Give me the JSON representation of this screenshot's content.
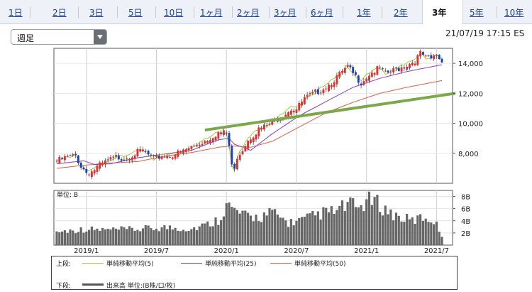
{
  "tabs": [
    {
      "label": "1日"
    },
    {
      "label": "2日"
    },
    {
      "label": "3日"
    },
    {
      "label": "5日"
    },
    {
      "label": "10日"
    },
    {
      "label": "1ヶ月"
    },
    {
      "label": "2ヶ月"
    },
    {
      "label": "3ヶ月"
    },
    {
      "label": "6ヶ月"
    },
    {
      "label": "1年"
    },
    {
      "label": "2年"
    },
    {
      "label": "3年"
    },
    {
      "label": "5年"
    },
    {
      "label": "10年"
    }
  ],
  "active_tab": "3年",
  "period_select": {
    "value": "週足"
  },
  "timestamp": "21/07/19 17:15 ES",
  "legend": {
    "upper_label": "上段:",
    "ma5": "単純移動平均(5)",
    "ma25": "単純移動平均(25)",
    "ma50": "単純移動平均(50)",
    "lower_label": "下段:",
    "volume": "出来高 単位:(B株/口/枚)"
  },
  "colors": {
    "up": "#e03030",
    "down": "#1a3fbf",
    "ma5": "#a8c83a",
    "ma25": "#8a3fc8",
    "ma50": "#e06040",
    "trendline": "#7aa84a",
    "volume": "#666666"
  },
  "chart_data": [
    {
      "type": "candlestick",
      "panel": "price",
      "interval": "weekly",
      "x_tick_labels": [
        "2019/1",
        "2019/7",
        "2020/1",
        "2020/7",
        "2021/1",
        "2021/7"
      ],
      "x_tick_weeks": [
        11,
        37,
        63,
        89,
        115,
        141
      ],
      "y_ticks": [
        8000,
        10000,
        12000,
        14000
      ],
      "y_tick_labels": [
        "8,000",
        "10,000",
        "12,000",
        "14,000"
      ],
      "ylim": [
        6000,
        15000
      ],
      "week_count": 144,
      "close_anchors": [
        [
          0,
          7600
        ],
        [
          4,
          7850
        ],
        [
          7,
          7950
        ],
        [
          9,
          7250
        ],
        [
          11,
          6850
        ],
        [
          13,
          6900
        ],
        [
          16,
          7300
        ],
        [
          19,
          7600
        ],
        [
          22,
          7850
        ],
        [
          25,
          7800
        ],
        [
          29,
          8100
        ],
        [
          32,
          8300
        ],
        [
          36,
          7700
        ],
        [
          39,
          7950
        ],
        [
          43,
          8000
        ],
        [
          47,
          8250
        ],
        [
          51,
          8600
        ],
        [
          56,
          9050
        ],
        [
          60,
          9500
        ],
        [
          63,
          9450
        ],
        [
          64,
          8600
        ],
        [
          65,
          7350
        ],
        [
          66,
          6950
        ],
        [
          67,
          7900
        ],
        [
          69,
          8400
        ],
        [
          71,
          9050
        ],
        [
          75,
          9700
        ],
        [
          79,
          10050
        ],
        [
          83,
          10550
        ],
        [
          87,
          11100
        ],
        [
          89,
          11050
        ],
        [
          92,
          11750
        ],
        [
          97,
          12250
        ],
        [
          101,
          12700
        ],
        [
          105,
          13350
        ],
        [
          108,
          13850
        ],
        [
          111,
          13200
        ],
        [
          113,
          12850
        ],
        [
          116,
          13400
        ],
        [
          120,
          13800
        ],
        [
          122,
          13400
        ],
        [
          126,
          13700
        ],
        [
          130,
          14000
        ],
        [
          133,
          14300
        ],
        [
          135,
          14750
        ],
        [
          136,
          14650
        ],
        [
          137,
          14450
        ],
        [
          139,
          14400
        ],
        [
          141,
          14700
        ],
        [
          143,
          14200
        ]
      ],
      "ma25_anchors": [
        [
          0,
          7300
        ],
        [
          10,
          7500
        ],
        [
          14,
          7250
        ],
        [
          20,
          7300
        ],
        [
          30,
          7700
        ],
        [
          40,
          7950
        ],
        [
          50,
          8200
        ],
        [
          60,
          8900
        ],
        [
          64,
          9000
        ],
        [
          66,
          8600
        ],
        [
          72,
          8200
        ],
        [
          80,
          9300
        ],
        [
          90,
          10500
        ],
        [
          100,
          11450
        ],
        [
          110,
          12400
        ],
        [
          120,
          13000
        ],
        [
          130,
          13450
        ],
        [
          140,
          13800
        ],
        [
          143,
          13900
        ]
      ],
      "ma50_anchors": [
        [
          0,
          7000
        ],
        [
          10,
          7200
        ],
        [
          20,
          7350
        ],
        [
          30,
          7450
        ],
        [
          40,
          7800
        ],
        [
          50,
          8050
        ],
        [
          60,
          8400
        ],
        [
          65,
          8500
        ],
        [
          72,
          8400
        ],
        [
          80,
          8800
        ],
        [
          90,
          9750
        ],
        [
          100,
          10700
        ],
        [
          110,
          11400
        ],
        [
          120,
          12000
        ],
        [
          130,
          12400
        ],
        [
          143,
          12850
        ]
      ],
      "trendline": {
        "x0": 55,
        "y0": 9550,
        "x1": 148,
        "y1": 12000
      }
    },
    {
      "type": "bar",
      "panel": "volume",
      "ylabel": "単位: B",
      "y_ticks": [
        2,
        4,
        6,
        8
      ],
      "y_tick_labels": [
        "2B",
        "4B",
        "6B",
        "8B"
      ],
      "ylim": [
        0,
        9
      ],
      "volume_anchors": [
        [
          0,
          2.2
        ],
        [
          10,
          2.6
        ],
        [
          20,
          2.5
        ],
        [
          30,
          2.6
        ],
        [
          40,
          2.9
        ],
        [
          50,
          2.7
        ],
        [
          56,
          3.4
        ],
        [
          60,
          4.2
        ],
        [
          63,
          6.6
        ],
        [
          66,
          5.7
        ],
        [
          70,
          4.7
        ],
        [
          75,
          4.6
        ],
        [
          80,
          5.3
        ],
        [
          86,
          3.7
        ],
        [
          92,
          4.2
        ],
        [
          98,
          5.2
        ],
        [
          104,
          5.6
        ],
        [
          108,
          6.7
        ],
        [
          112,
          6.1
        ],
        [
          116,
          7.6
        ],
        [
          120,
          6.6
        ],
        [
          124,
          5.2
        ],
        [
          128,
          4.5
        ],
        [
          132,
          4.0
        ],
        [
          136,
          4.6
        ],
        [
          140,
          4.1
        ],
        [
          143,
          1.6
        ]
      ]
    }
  ]
}
